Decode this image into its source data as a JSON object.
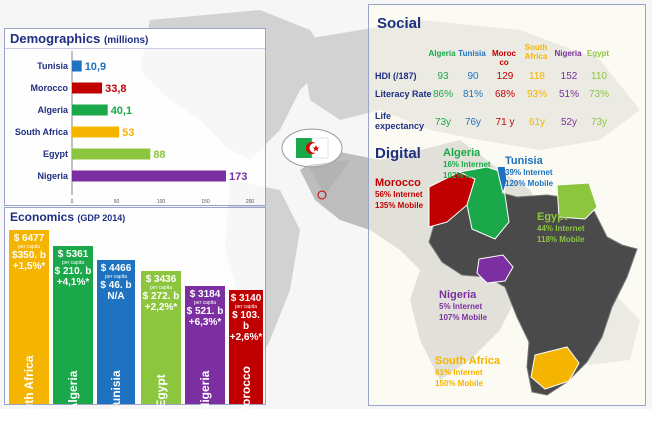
{
  "demographics": {
    "title": "Demographics",
    "unit": "(millions)",
    "axis_ticks": [
      "0",
      "50",
      "100",
      "150",
      "200"
    ]
  },
  "economics": {
    "title": "Economics",
    "unit": "(GDP 2014)",
    "per_capita_label": "per capita",
    "bars": [
      {
        "country": "South Africa",
        "gdp_pc": "$ 6477",
        "total": "$350. b",
        "growth": "+1,5%*",
        "color": "#f5b400"
      },
      {
        "country": "Algeria",
        "gdp_pc": "$ 5361",
        "total": "$ 210. b",
        "growth": "+4,1%*",
        "color": "#1aa84a"
      },
      {
        "country": "Tunisia",
        "gdp_pc": "$ 4466",
        "total": "$ 46. b",
        "growth": "N/A",
        "color": "#1e72c0"
      },
      {
        "country": "Egypt",
        "gdp_pc": "$ 3436",
        "total": "$ 272. b",
        "growth": "+2,2%*",
        "color": "#8cc63f"
      },
      {
        "country": "Nigeria",
        "gdp_pc": "$ 3184",
        "total": "$ 521. b",
        "growth": "+6,3%*",
        "color": "#7b2fa0"
      },
      {
        "country": "Morocco",
        "gdp_pc": "$ 3140",
        "total": "$ 103. b",
        "growth": "+2,6%*",
        "color": "#c00000"
      }
    ]
  },
  "chart_data": {
    "type": "bar",
    "orientation": "horizontal",
    "title": "Demographics (millions)",
    "categories": [
      "Tunisia",
      "Morocco",
      "Algeria",
      "South Africa",
      "Egypt",
      "Nigeria"
    ],
    "values": [
      10.9,
      33.8,
      40.1,
      53,
      88,
      173
    ],
    "value_labels": [
      "10,9",
      "33,8",
      "40,1",
      "53",
      "88",
      "173"
    ],
    "colors": [
      "#1e72c0",
      "#c00000",
      "#1aa84a",
      "#f5b400",
      "#8cc63f",
      "#7b2fa0"
    ],
    "xlim": [
      0,
      200
    ],
    "grid": false
  },
  "social": {
    "title": "Social",
    "columns": [
      {
        "label": "Algeria",
        "color": "#1aa84a"
      },
      {
        "label": "Tunisia",
        "color": "#1e72c0"
      },
      {
        "label": "Moroc co",
        "color": "#c00000"
      },
      {
        "label": "South Africa",
        "color": "#f5b400"
      },
      {
        "label": "Nigeria",
        "color": "#7b2fa0"
      },
      {
        "label": "Egypt",
        "color": "#8cc63f"
      }
    ],
    "rows": [
      {
        "label": "HDI (/187)",
        "values": [
          "93",
          "90",
          "129",
          "118",
          "152",
          "110"
        ]
      },
      {
        "label": "Literacy Rate",
        "values": [
          "86%",
          "81%",
          "68%",
          "93%",
          "51%",
          "73%"
        ]
      },
      {
        "label": "Life expectancy",
        "values": [
          "73y",
          "76y",
          "71 y",
          "61y",
          "52y",
          "73y"
        ]
      }
    ]
  },
  "digital": {
    "title": "Digital",
    "items": [
      {
        "name": "Algeria",
        "internet": "16% Internet",
        "mobile": "102% Mobile",
        "color": "#1aa84a"
      },
      {
        "name": "Tunisia",
        "internet": "39% Internet",
        "mobile": "120% Mobile",
        "color": "#1e72c0"
      },
      {
        "name": "Morocco",
        "internet": "56% Internet",
        "mobile": "135% Mobile",
        "color": "#c00000"
      },
      {
        "name": "Egypt",
        "internet": "44% Internet",
        "mobile": "118% Mobile",
        "color": "#8cc63f"
      },
      {
        "name": "Nigeria",
        "internet": "5% Internet",
        "mobile": "107% Mobile",
        "color": "#7b2fa0"
      },
      {
        "name": "South Africa",
        "internet": "61% Internet",
        "mobile": "150% Mobile",
        "color": "#f5b400"
      }
    ]
  }
}
